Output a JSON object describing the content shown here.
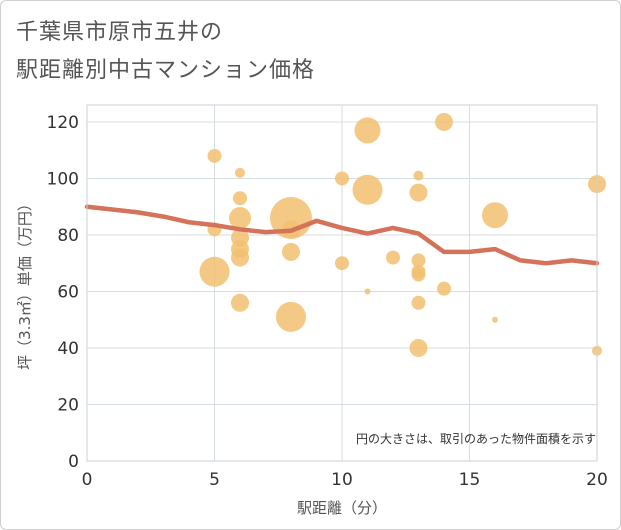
{
  "chart_data": {
    "type": "scatter",
    "title_line1": "千葉県市原市五井の",
    "title_line2": "駅距離別中古マンション価格",
    "xlabel": "駅距離（分）",
    "ylabel": "坪（3.3㎡）単価（万円）",
    "note": "円の大きさは、取引のあった物件面積を示す",
    "xlim": [
      0,
      20
    ],
    "ylim": [
      0,
      126
    ],
    "xticks": [
      0,
      5,
      10,
      15,
      20
    ],
    "yticks": [
      0,
      20,
      40,
      60,
      80,
      100,
      120
    ],
    "colors": {
      "bubble": "#f2c070",
      "line": "#d4735a",
      "grid": "#d5dde3"
    },
    "bubbles": [
      {
        "x": 5,
        "y": 108,
        "s": 3
      },
      {
        "x": 5,
        "y": 82,
        "s": 3
      },
      {
        "x": 5,
        "y": 67,
        "s": 7
      },
      {
        "x": 6,
        "y": 102,
        "s": 2
      },
      {
        "x": 6,
        "y": 93,
        "s": 3
      },
      {
        "x": 6,
        "y": 86,
        "s": 5
      },
      {
        "x": 6,
        "y": 79,
        "s": 4
      },
      {
        "x": 6,
        "y": 75,
        "s": 4
      },
      {
        "x": 6,
        "y": 72,
        "s": 4
      },
      {
        "x": 6,
        "y": 56,
        "s": 4
      },
      {
        "x": 8,
        "y": 86,
        "s": 10
      },
      {
        "x": 8,
        "y": 82,
        "s": 4
      },
      {
        "x": 8,
        "y": 74,
        "s": 4
      },
      {
        "x": 8,
        "y": 51,
        "s": 7
      },
      {
        "x": 10,
        "y": 100,
        "s": 3
      },
      {
        "x": 10,
        "y": 70,
        "s": 3
      },
      {
        "x": 11,
        "y": 117,
        "s": 6
      },
      {
        "x": 11,
        "y": 96,
        "s": 7
      },
      {
        "x": 11,
        "y": 60,
        "s": 1
      },
      {
        "x": 12,
        "y": 72,
        "s": 3
      },
      {
        "x": 13,
        "y": 101,
        "s": 2
      },
      {
        "x": 13,
        "y": 95,
        "s": 4
      },
      {
        "x": 13,
        "y": 71,
        "s": 3
      },
      {
        "x": 13,
        "y": 67,
        "s": 3
      },
      {
        "x": 13,
        "y": 66,
        "s": 3
      },
      {
        "x": 13,
        "y": 56,
        "s": 3
      },
      {
        "x": 13,
        "y": 40,
        "s": 4
      },
      {
        "x": 14,
        "y": 120,
        "s": 4
      },
      {
        "x": 14,
        "y": 61,
        "s": 3
      },
      {
        "x": 16,
        "y": 87,
        "s": 6
      },
      {
        "x": 16,
        "y": 50,
        "s": 1
      },
      {
        "x": 20,
        "y": 98,
        "s": 4
      },
      {
        "x": 20,
        "y": 39,
        "s": 2
      }
    ],
    "line": {
      "x": [
        0,
        1,
        2,
        3,
        4,
        5,
        6,
        7,
        8,
        9,
        10,
        11,
        12,
        13,
        14,
        15,
        16,
        17,
        18,
        19,
        20
      ],
      "y": [
        90,
        89,
        88,
        86.5,
        84.5,
        83.5,
        82,
        81,
        81.5,
        85,
        82.5,
        80.5,
        82.5,
        80.5,
        74,
        74,
        75,
        71,
        70,
        71,
        70
      ]
    }
  }
}
